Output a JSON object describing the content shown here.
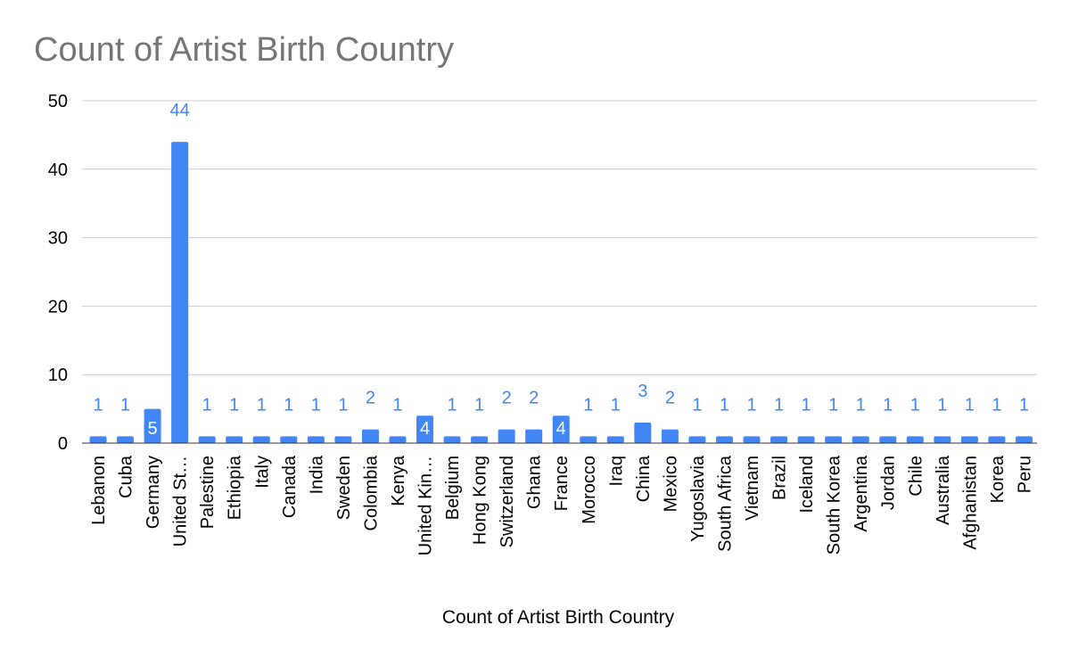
{
  "chart_data": {
    "type": "bar",
    "title": "Count of Artist Birth Country",
    "xlabel": "Count of Artist Birth Country",
    "ylabel": "",
    "ylim": [
      0,
      50
    ],
    "yticks": [
      "0",
      "10",
      "20",
      "30",
      "40",
      "50"
    ],
    "grid": true,
    "legend": "none",
    "categories": [
      "Lebanon",
      "Cuba",
      "Germany",
      "United St…",
      "Palestine",
      "Ethiopia",
      "Italy",
      "Canada",
      "India",
      "Sweden",
      "Colombia",
      "Kenya",
      "United Kin…",
      "Belgium",
      "Hong Kong",
      "Switzerland",
      "Ghana",
      "France",
      "Morocco",
      "Iraq",
      "China",
      "Mexico",
      "Yugoslavia",
      "South Africa",
      "Vietnam",
      "Brazil",
      "Iceland",
      "South Korea",
      "Argentina",
      "Jordan",
      "Chile",
      "Australia",
      "Afghanistan",
      "Korea",
      "Peru"
    ],
    "values": [
      1,
      1,
      5,
      44,
      1,
      1,
      1,
      1,
      1,
      1,
      2,
      1,
      4,
      1,
      1,
      2,
      2,
      4,
      1,
      1,
      3,
      2,
      1,
      1,
      1,
      1,
      1,
      1,
      1,
      1,
      1,
      1,
      1,
      1,
      1
    ],
    "data_labels": [
      "1",
      "1",
      "5",
      "44",
      "1",
      "1",
      "1",
      "1",
      "1",
      "1",
      "2",
      "1",
      "4",
      "1",
      "1",
      "2",
      "2",
      "4",
      "1",
      "1",
      "3",
      "2",
      "1",
      "1",
      "1",
      "1",
      "1",
      "1",
      "1",
      "1",
      "1",
      "1",
      "1",
      "1",
      "1"
    ],
    "colors": {
      "bar": "#4285f4",
      "label": "#4285f4",
      "inside_label": "#ffffff",
      "grid": "#cccccc",
      "axis": "#333333",
      "title": "#757575"
    }
  }
}
